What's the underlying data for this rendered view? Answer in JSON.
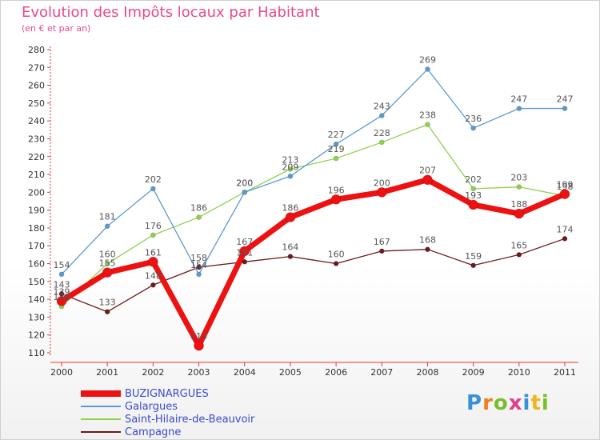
{
  "header": {
    "title": "Evolution des Impôts locaux par Habitant",
    "subtitle": "(en € et par an)"
  },
  "logo": {
    "text": "Proxiti",
    "colors": [
      "#3a8fd8",
      "#f07c1e",
      "#7bbd2c",
      "#e23c8e",
      "#3a8fd8",
      "#f0b41e",
      "#7bbd2c"
    ]
  },
  "colors": {
    "title": "#e8488c",
    "axis": "#e23a3a",
    "legend_text": "#3b4ad0"
  },
  "chart_data": {
    "type": "line",
    "title": "Evolution des Impôts locaux par Habitant",
    "subtitle": "(en € et par an)",
    "xlabel": "",
    "ylabel": "",
    "x": [
      "2000",
      "2001",
      "2002",
      "2003",
      "2004",
      "2005",
      "2006",
      "2007",
      "2008",
      "2009",
      "2010",
      "2011"
    ],
    "ylim": [
      110,
      280
    ],
    "yticks": [
      110,
      120,
      130,
      140,
      150,
      160,
      170,
      180,
      190,
      200,
      210,
      220,
      230,
      240,
      250,
      260,
      270,
      280
    ],
    "grid": false,
    "legend_position": "bottom-left",
    "series": [
      {
        "name": "Campagne",
        "color": "#6e1a1a",
        "values": [
          143,
          133,
          148,
          158,
          161,
          164,
          160,
          167,
          168,
          159,
          165,
          174
        ]
      },
      {
        "name": "Saint-Hilaire-de-Beauvoir",
        "color": "#8fd14f",
        "values": [
          136,
          160,
          176,
          186,
          200,
          213,
          219,
          228,
          238,
          202,
          203,
          198
        ]
      },
      {
        "name": "Galargues",
        "color": "#5c9bd1",
        "values": [
          154,
          181,
          202,
          154,
          200,
          209,
          227,
          243,
          269,
          236,
          247,
          247
        ]
      },
      {
        "name": "BUZIGNARGUES",
        "color": "#ee1111",
        "values": [
          139,
          155,
          161,
          114,
          167,
          186,
          196,
          200,
          207,
          193,
          188,
          199
        ]
      }
    ],
    "legend_order": [
      "BUZIGNARGUES",
      "Galargues",
      "Saint-Hilaire-de-Beauvoir",
      "Campagne"
    ]
  }
}
